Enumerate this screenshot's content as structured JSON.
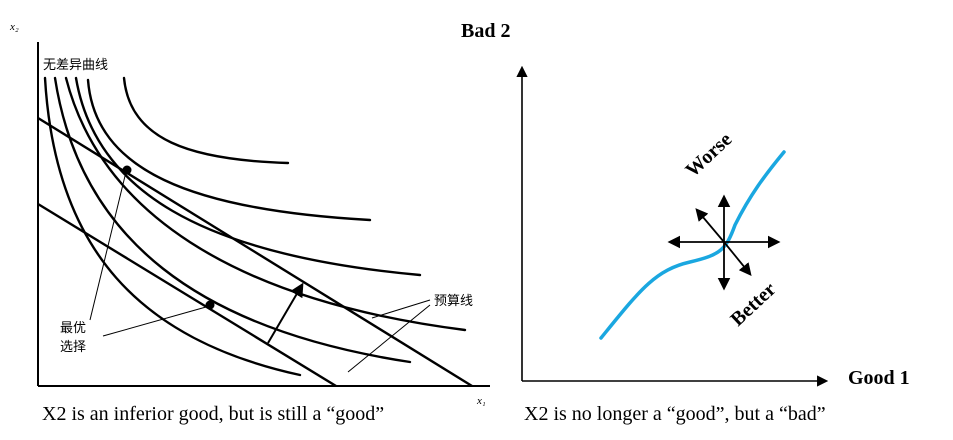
{
  "left_panel": {
    "axis_x_label": "x₁",
    "axis_y_label": "x₂",
    "indifference_label": "无差异曲线",
    "budget_label": "预算线",
    "optimal_label_line1": "最优",
    "optimal_label_line2": "选择",
    "caption": "X2 is an inferior good, but is still a “good”"
  },
  "right_panel": {
    "y_axis_label": "Bad 2",
    "x_axis_label": "Good 1",
    "worse_label": "Worse",
    "better_label": "Better",
    "caption": "X2 is no longer a “good”, but a “bad”",
    "curve_color": "#1aa7e0"
  }
}
